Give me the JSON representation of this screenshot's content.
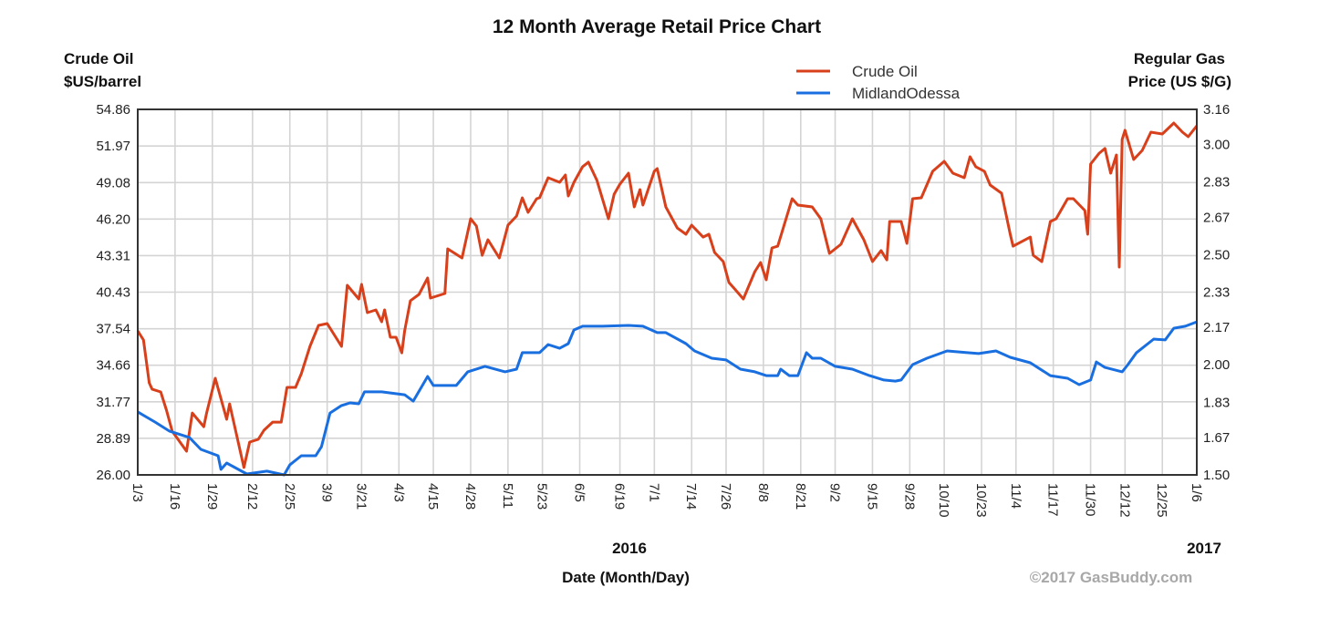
{
  "chart_data": {
    "type": "line",
    "title": "12 Month Average Retail Price Chart",
    "ylabel_left": [
      "Crude Oil",
      "$US/barrel"
    ],
    "ylabel_right": [
      "Regular Gas",
      "Price (US $/G)"
    ],
    "xlabel": "Date (Month/Day)",
    "year_labels": [
      "2016",
      "2017"
    ],
    "credit": "©2017 GasBuddy.com",
    "legend_position": "top-right",
    "grid": true,
    "xlim": [
      "2016-01-03",
      "2017-01-06"
    ],
    "ylim_left": [
      26.0,
      54.86
    ],
    "ylim_right": [
      1.5,
      3.16
    ],
    "y_ticks_left": [
      "54.86",
      "51.97",
      "49.08",
      "46.20",
      "43.31",
      "40.43",
      "37.54",
      "34.66",
      "31.77",
      "28.89",
      "26.00"
    ],
    "y_ticks_right": [
      "3.16",
      "3.00",
      "2.83",
      "2.67",
      "2.50",
      "2.33",
      "2.17",
      "2.00",
      "1.83",
      "1.67",
      "1.50"
    ],
    "x_ticks": [
      {
        "label": "1/3",
        "date": "2016-01-03"
      },
      {
        "label": "1/16",
        "date": "2016-01-16"
      },
      {
        "label": "1/29",
        "date": "2016-01-29"
      },
      {
        "label": "2/12",
        "date": "2016-02-12"
      },
      {
        "label": "2/25",
        "date": "2016-02-25"
      },
      {
        "label": "3/9",
        "date": "2016-03-09"
      },
      {
        "label": "3/21",
        "date": "2016-03-21"
      },
      {
        "label": "4/3",
        "date": "2016-04-03"
      },
      {
        "label": "4/15",
        "date": "2016-04-15"
      },
      {
        "label": "4/28",
        "date": "2016-04-28"
      },
      {
        "label": "5/11",
        "date": "2016-05-11"
      },
      {
        "label": "5/23",
        "date": "2016-05-23"
      },
      {
        "label": "6/5",
        "date": "2016-06-05"
      },
      {
        "label": "6/19",
        "date": "2016-06-19"
      },
      {
        "label": "7/1",
        "date": "2016-07-01"
      },
      {
        "label": "7/14",
        "date": "2016-07-14"
      },
      {
        "label": "7/26",
        "date": "2016-07-26"
      },
      {
        "label": "8/8",
        "date": "2016-08-08"
      },
      {
        "label": "8/21",
        "date": "2016-08-21"
      },
      {
        "label": "9/2",
        "date": "2016-09-02"
      },
      {
        "label": "9/15",
        "date": "2016-09-15"
      },
      {
        "label": "9/28",
        "date": "2016-09-28"
      },
      {
        "label": "10/10",
        "date": "2016-10-10"
      },
      {
        "label": "10/23",
        "date": "2016-10-23"
      },
      {
        "label": "11/4",
        "date": "2016-11-04"
      },
      {
        "label": "11/17",
        "date": "2016-11-17"
      },
      {
        "label": "11/30",
        "date": "2016-11-30"
      },
      {
        "label": "12/12",
        "date": "2016-12-12"
      },
      {
        "label": "12/25",
        "date": "2016-12-25"
      },
      {
        "label": "1/6",
        "date": "2017-01-06"
      }
    ],
    "series": [
      {
        "name": "Crude Oil",
        "axis": "left",
        "color": "#d8401c",
        "points": [
          [
            "2016-01-03",
            37.37
          ],
          [
            "2016-01-05",
            36.65
          ],
          [
            "2016-01-07",
            33.27
          ],
          [
            "2016-01-08",
            32.77
          ],
          [
            "2016-01-11",
            32.55
          ],
          [
            "2016-01-13",
            31.11
          ],
          [
            "2016-01-15",
            29.45
          ],
          [
            "2016-01-20",
            27.87
          ],
          [
            "2016-01-22",
            30.89
          ],
          [
            "2016-01-26",
            29.81
          ],
          [
            "2016-01-27",
            30.89
          ],
          [
            "2016-01-30",
            33.63
          ],
          [
            "2016-02-03",
            30.39
          ],
          [
            "2016-02-04",
            31.61
          ],
          [
            "2016-02-09",
            26.58
          ],
          [
            "2016-02-11",
            28.59
          ],
          [
            "2016-02-14",
            28.81
          ],
          [
            "2016-02-16",
            29.53
          ],
          [
            "2016-02-19",
            30.17
          ],
          [
            "2016-02-22",
            30.17
          ],
          [
            "2016-02-24",
            32.91
          ],
          [
            "2016-02-27",
            32.91
          ],
          [
            "2016-02-29",
            33.99
          ],
          [
            "2016-03-03",
            36.15
          ],
          [
            "2016-03-06",
            37.8
          ],
          [
            "2016-03-09",
            37.95
          ],
          [
            "2016-03-14",
            36.15
          ],
          [
            "2016-03-16",
            40.97
          ],
          [
            "2016-03-20",
            39.89
          ],
          [
            "2016-03-21",
            41.04
          ],
          [
            "2016-03-23",
            38.81
          ],
          [
            "2016-03-26",
            39.03
          ],
          [
            "2016-03-28",
            38.09
          ],
          [
            "2016-03-29",
            39.03
          ],
          [
            "2016-03-31",
            36.87
          ],
          [
            "2016-04-02",
            36.87
          ],
          [
            "2016-04-04",
            35.64
          ],
          [
            "2016-04-05",
            37.37
          ],
          [
            "2016-04-07",
            39.75
          ],
          [
            "2016-04-10",
            40.25
          ],
          [
            "2016-04-13",
            41.55
          ],
          [
            "2016-04-14",
            39.96
          ],
          [
            "2016-04-19",
            40.32
          ],
          [
            "2016-04-20",
            43.85
          ],
          [
            "2016-04-25",
            43.13
          ],
          [
            "2016-04-28",
            46.22
          ],
          [
            "2016-04-30",
            45.65
          ],
          [
            "2016-05-02",
            43.34
          ],
          [
            "2016-05-04",
            44.57
          ],
          [
            "2016-05-08",
            43.13
          ],
          [
            "2016-05-11",
            45.72
          ],
          [
            "2016-05-14",
            46.44
          ],
          [
            "2016-05-16",
            47.88
          ],
          [
            "2016-05-18",
            46.73
          ],
          [
            "2016-05-21",
            47.81
          ],
          [
            "2016-05-22",
            47.88
          ],
          [
            "2016-05-25",
            49.46
          ],
          [
            "2016-05-29",
            49.1
          ],
          [
            "2016-05-31",
            49.68
          ],
          [
            "2016-06-01",
            48.02
          ],
          [
            "2016-06-03",
            49.1
          ],
          [
            "2016-06-06",
            50.33
          ],
          [
            "2016-06-08",
            50.69
          ],
          [
            "2016-06-11",
            49.25
          ],
          [
            "2016-06-15",
            46.22
          ],
          [
            "2016-06-17",
            48.17
          ],
          [
            "2016-06-19",
            48.96
          ],
          [
            "2016-06-22",
            49.82
          ],
          [
            "2016-06-24",
            47.16
          ],
          [
            "2016-06-26",
            48.53
          ],
          [
            "2016-06-27",
            47.3
          ],
          [
            "2016-07-01",
            49.97
          ],
          [
            "2016-07-02",
            50.18
          ],
          [
            "2016-07-05",
            47.16
          ],
          [
            "2016-07-09",
            45.5
          ],
          [
            "2016-07-12",
            45.0
          ],
          [
            "2016-07-14",
            45.72
          ],
          [
            "2016-07-18",
            44.78
          ],
          [
            "2016-07-20",
            45.0
          ],
          [
            "2016-07-22",
            43.56
          ],
          [
            "2016-07-25",
            42.84
          ],
          [
            "2016-07-27",
            41.19
          ],
          [
            "2016-07-29",
            40.68
          ],
          [
            "2016-08-01",
            39.89
          ],
          [
            "2016-08-05",
            42.05
          ],
          [
            "2016-08-07",
            42.77
          ],
          [
            "2016-08-09",
            41.4
          ],
          [
            "2016-08-11",
            43.92
          ],
          [
            "2016-08-13",
            44.06
          ],
          [
            "2016-08-18",
            47.81
          ],
          [
            "2016-08-20",
            47.3
          ],
          [
            "2016-08-25",
            47.16
          ],
          [
            "2016-08-28",
            46.22
          ],
          [
            "2016-08-31",
            43.49
          ],
          [
            "2016-09-04",
            44.21
          ],
          [
            "2016-09-08",
            46.22
          ],
          [
            "2016-09-12",
            44.57
          ],
          [
            "2016-09-15",
            42.84
          ],
          [
            "2016-09-18",
            43.71
          ],
          [
            "2016-09-20",
            42.98
          ],
          [
            "2016-09-21",
            46.01
          ],
          [
            "2016-09-25",
            46.01
          ],
          [
            "2016-09-27",
            44.28
          ],
          [
            "2016-09-29",
            47.81
          ],
          [
            "2016-10-02",
            47.88
          ],
          [
            "2016-10-06",
            49.97
          ],
          [
            "2016-10-10",
            50.76
          ],
          [
            "2016-10-13",
            49.82
          ],
          [
            "2016-10-17",
            49.46
          ],
          [
            "2016-10-19",
            51.12
          ],
          [
            "2016-10-21",
            50.33
          ],
          [
            "2016-10-24",
            49.97
          ],
          [
            "2016-10-26",
            48.89
          ],
          [
            "2016-10-30",
            48.24
          ],
          [
            "2016-11-02",
            45.0
          ],
          [
            "2016-11-03",
            44.06
          ],
          [
            "2016-11-09",
            44.78
          ],
          [
            "2016-11-10",
            43.34
          ],
          [
            "2016-11-13",
            42.84
          ],
          [
            "2016-11-16",
            46.01
          ],
          [
            "2016-11-18",
            46.22
          ],
          [
            "2016-11-22",
            47.81
          ],
          [
            "2016-11-24",
            47.81
          ],
          [
            "2016-11-28",
            46.87
          ],
          [
            "2016-11-29",
            45.0
          ],
          [
            "2016-11-30",
            50.54
          ],
          [
            "2016-12-03",
            51.4
          ],
          [
            "2016-12-05",
            51.77
          ],
          [
            "2016-12-07",
            49.82
          ],
          [
            "2016-12-09",
            51.26
          ],
          [
            "2016-12-10",
            42.41
          ],
          [
            "2016-12-11",
            52.49
          ],
          [
            "2016-12-12",
            53.21
          ],
          [
            "2016-12-15",
            50.9
          ],
          [
            "2016-12-18",
            51.62
          ],
          [
            "2016-12-21",
            53.06
          ],
          [
            "2016-12-25",
            52.92
          ],
          [
            "2016-12-29",
            53.78
          ],
          [
            "2017-01-01",
            53.06
          ],
          [
            "2017-01-03",
            52.7
          ],
          [
            "2017-01-06",
            53.56
          ]
        ]
      },
      {
        "name": "MidlandOdessa",
        "axis": "right",
        "color": "#1a6fe0",
        "points": [
          [
            "2016-01-03",
            1.786
          ],
          [
            "2016-01-09",
            1.74
          ],
          [
            "2016-01-14",
            1.699
          ],
          [
            "2016-01-21",
            1.67
          ],
          [
            "2016-01-25",
            1.616
          ],
          [
            "2016-01-31",
            1.587
          ],
          [
            "2016-02-01",
            1.525
          ],
          [
            "2016-02-03",
            1.554
          ],
          [
            "2016-02-10",
            1.504
          ],
          [
            "2016-02-17",
            1.517
          ],
          [
            "2016-02-23",
            1.5
          ],
          [
            "2016-02-25",
            1.546
          ],
          [
            "2016-02-29",
            1.587
          ],
          [
            "2016-03-05",
            1.587
          ],
          [
            "2016-03-07",
            1.628
          ],
          [
            "2016-03-10",
            1.781
          ],
          [
            "2016-03-14",
            1.815
          ],
          [
            "2016-03-17",
            1.827
          ],
          [
            "2016-03-20",
            1.823
          ],
          [
            "2016-03-22",
            1.877
          ],
          [
            "2016-03-28",
            1.877
          ],
          [
            "2016-04-05",
            1.864
          ],
          [
            "2016-04-08",
            1.835
          ],
          [
            "2016-04-13",
            1.947
          ],
          [
            "2016-04-15",
            1.906
          ],
          [
            "2016-04-23",
            1.906
          ],
          [
            "2016-04-27",
            1.968
          ],
          [
            "2016-05-03",
            1.993
          ],
          [
            "2016-05-10",
            1.968
          ],
          [
            "2016-05-14",
            1.98
          ],
          [
            "2016-05-16",
            2.055
          ],
          [
            "2016-05-22",
            2.055
          ],
          [
            "2016-05-25",
            2.092
          ],
          [
            "2016-05-29",
            2.075
          ],
          [
            "2016-06-01",
            2.096
          ],
          [
            "2016-06-03",
            2.158
          ],
          [
            "2016-06-06",
            2.175
          ],
          [
            "2016-06-13",
            2.175
          ],
          [
            "2016-06-22",
            2.179
          ],
          [
            "2016-06-27",
            2.175
          ],
          [
            "2016-07-02",
            2.146
          ],
          [
            "2016-07-05",
            2.146
          ],
          [
            "2016-07-12",
            2.096
          ],
          [
            "2016-07-15",
            2.063
          ],
          [
            "2016-07-21",
            2.03
          ],
          [
            "2016-07-26",
            2.022
          ],
          [
            "2016-07-31",
            1.98
          ],
          [
            "2016-08-05",
            1.968
          ],
          [
            "2016-08-09",
            1.951
          ],
          [
            "2016-08-13",
            1.951
          ],
          [
            "2016-08-14",
            1.98
          ],
          [
            "2016-08-17",
            1.951
          ],
          [
            "2016-08-20",
            1.951
          ],
          [
            "2016-08-23",
            2.055
          ],
          [
            "2016-08-25",
            2.03
          ],
          [
            "2016-08-28",
            2.03
          ],
          [
            "2016-09-02",
            1.993
          ],
          [
            "2016-09-08",
            1.98
          ],
          [
            "2016-09-14",
            1.951
          ],
          [
            "2016-09-19",
            1.931
          ],
          [
            "2016-09-23",
            1.926
          ],
          [
            "2016-09-25",
            1.931
          ],
          [
            "2016-09-29",
            2.001
          ],
          [
            "2016-10-04",
            2.03
          ],
          [
            "2016-10-11",
            2.063
          ],
          [
            "2016-10-18",
            2.055
          ],
          [
            "2016-10-22",
            2.051
          ],
          [
            "2016-10-28",
            2.063
          ],
          [
            "2016-11-02",
            2.034
          ],
          [
            "2016-11-09",
            2.009
          ],
          [
            "2016-11-16",
            1.951
          ],
          [
            "2016-11-22",
            1.939
          ],
          [
            "2016-11-26",
            1.91
          ],
          [
            "2016-11-30",
            1.931
          ],
          [
            "2016-12-02",
            2.013
          ],
          [
            "2016-12-05",
            1.988
          ],
          [
            "2016-12-11",
            1.968
          ],
          [
            "2016-12-13",
            2.001
          ],
          [
            "2016-12-16",
            2.055
          ],
          [
            "2016-12-22",
            2.117
          ],
          [
            "2016-12-26",
            2.113
          ],
          [
            "2016-12-29",
            2.166
          ],
          [
            "2017-01-02",
            2.175
          ],
          [
            "2017-01-06",
            2.195
          ]
        ]
      }
    ]
  }
}
